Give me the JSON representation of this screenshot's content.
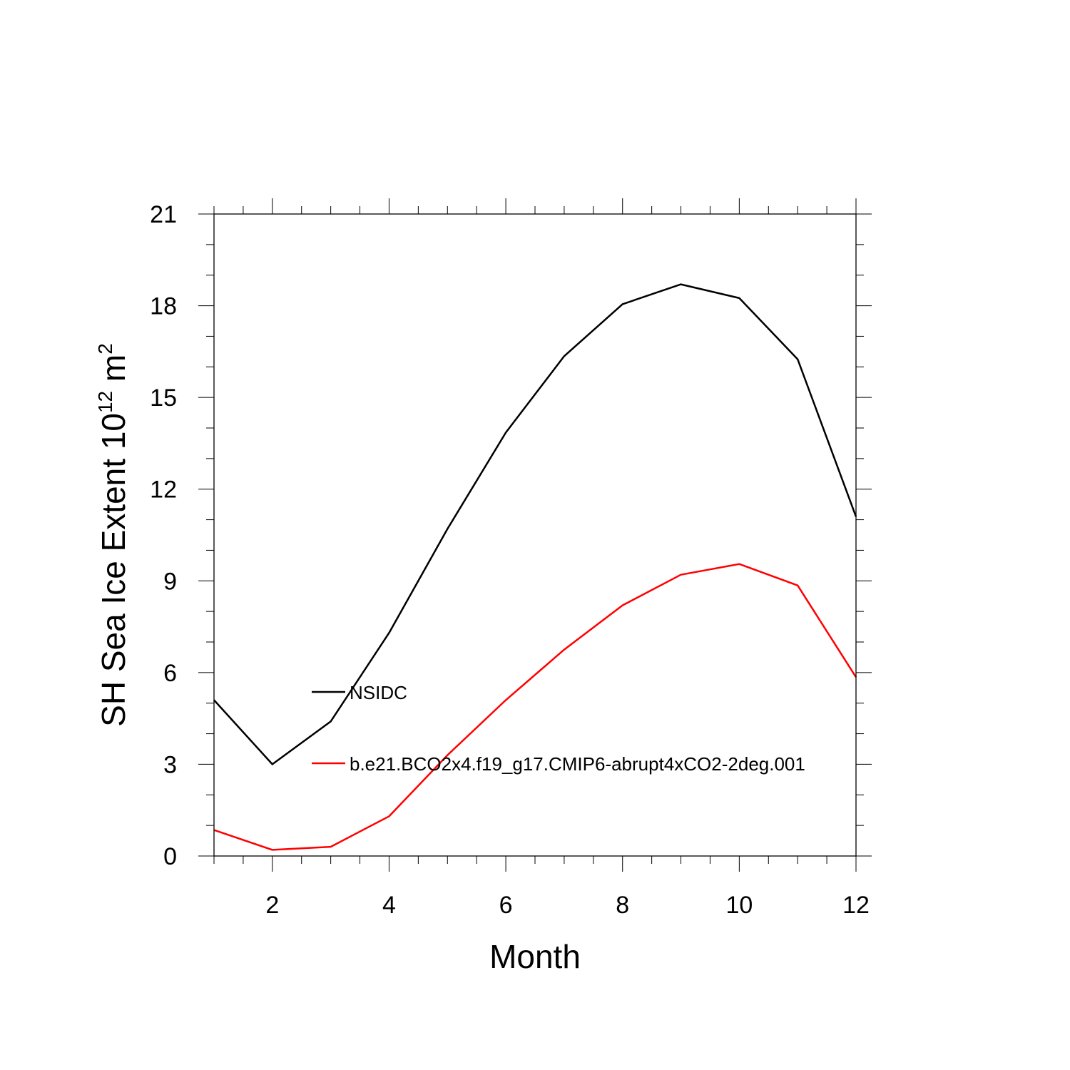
{
  "chart_data": {
    "type": "line",
    "xlabel": "Month",
    "ylabel": "SH Sea Ice Extent 10",
    "ylabel_exp1": "12",
    "ylabel_unit": " m",
    "ylabel_exp2": "2",
    "xlim": [
      1,
      12
    ],
    "ylim": [
      0,
      21
    ],
    "x_ticks": [
      2,
      4,
      6,
      8,
      10,
      12
    ],
    "y_ticks": [
      0,
      3,
      6,
      9,
      12,
      15,
      18,
      21
    ],
    "x": [
      1,
      2,
      3,
      4,
      5,
      6,
      7,
      8,
      9,
      10,
      11,
      12
    ],
    "series": [
      {
        "name": "NSIDC",
        "color": "#000000",
        "values": [
          5.1,
          3.0,
          4.4,
          7.3,
          10.7,
          13.85,
          16.35,
          18.05,
          18.7,
          18.25,
          16.25,
          11.1
        ]
      },
      {
        "name": "b.e21.BCO2x4.f19_g17.CMIP6-abrupt4xCO2-2deg.001",
        "color": "#ff0000",
        "values": [
          0.85,
          0.2,
          0.3,
          1.3,
          3.3,
          5.1,
          6.75,
          8.2,
          9.2,
          9.55,
          8.85,
          5.85
        ]
      }
    ],
    "grid": false,
    "legend_position": "inside, lower-left"
  }
}
